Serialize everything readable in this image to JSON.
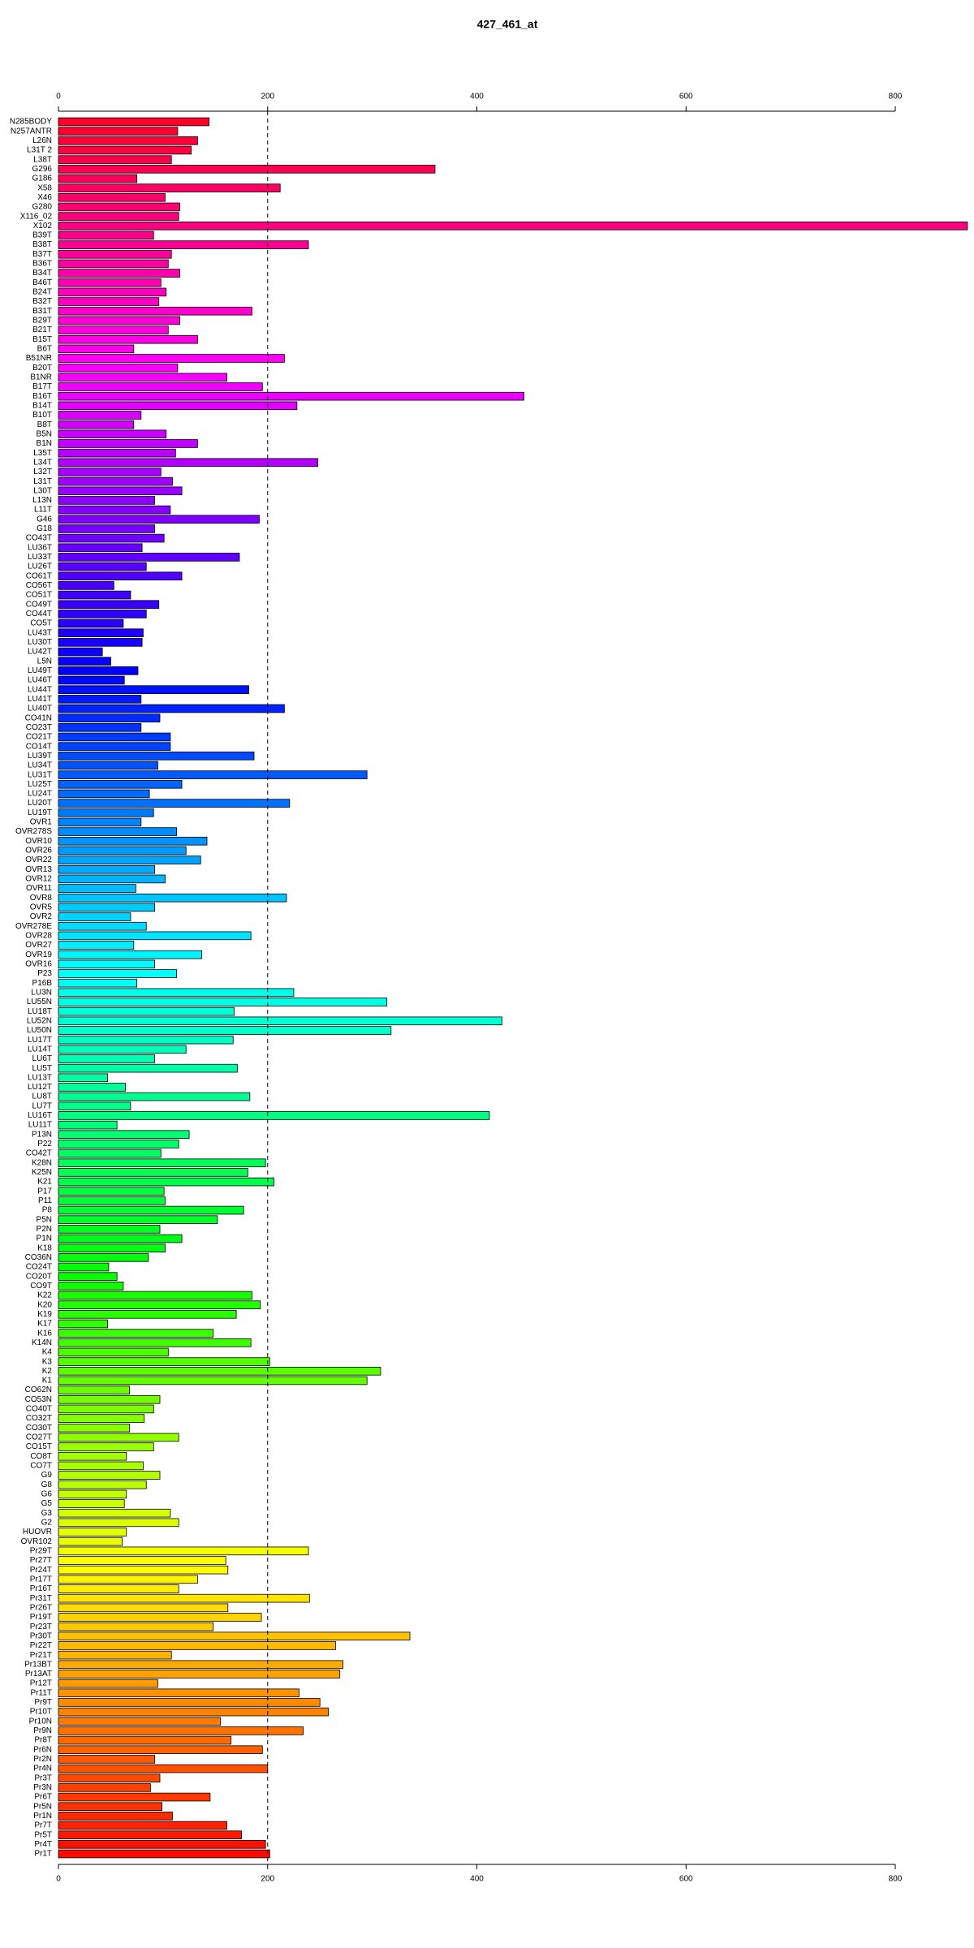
{
  "chart_data": {
    "type": "barh",
    "title": "427_461_at",
    "categories": [
      "N285BODY",
      "N257ANTR",
      "L26N",
      "L31T 2",
      "L38T",
      "G296",
      "G186",
      "X58",
      "X46",
      "G280",
      "X116_02",
      "X102",
      "B39T",
      "B38T",
      "B37T",
      "B36T",
      "B34T",
      "B46T",
      "B24T",
      "B32T",
      "B31T",
      "B29T",
      "B21T",
      "B15T",
      "B6T",
      "B51NR",
      "B20T",
      "B1NR",
      "B17T",
      "B16T",
      "B14T",
      "B10T",
      "B8T",
      "B5N",
      "B1N",
      "L35T",
      "L34T",
      "L32T",
      "L31T",
      "L30T",
      "L13N",
      "L11T",
      "G46",
      "G18",
      "CO43T",
      "LU36T",
      "LU33T",
      "LU26T",
      "CO61T",
      "CO56T",
      "CO51T",
      "CO49T",
      "CO44T",
      "CO5T",
      "LU43T",
      "LU30T",
      "LU42T",
      "L5N",
      "LU49T",
      "LU46T",
      "LU44T",
      "LU41T",
      "LU40T",
      "CO41N",
      "CO23T",
      "CO21T",
      "CO14T",
      "LU39T",
      "LU34T",
      "LU31T",
      "LU25T",
      "LU24T",
      "LU20T",
      "LU19T",
      "OVR1",
      "OVR278S",
      "OVR10",
      "OVR26",
      "OVR22",
      "OVR13",
      "OVR12",
      "OVR11",
      "OVR8",
      "OVR5",
      "OVR2",
      "OVR278E",
      "OVR28",
      "OVR27",
      "OVR19",
      "OVR16",
      "P23",
      "P16B",
      "LU3N",
      "LU55N",
      "LU18T",
      "LU52N",
      "LU50N",
      "LU17T",
      "LU14T",
      "LU6T",
      "LU5T",
      "LU13T",
      "LU12T",
      "LU8T",
      "LU7T",
      "LU16T",
      "LU11T",
      "P13N",
      "P22",
      "CO42T",
      "K28N",
      "K25N",
      "K21",
      "P17",
      "P11",
      "P8",
      "P5N",
      "P2N",
      "P1N",
      "K18",
      "CO36N",
      "CO24T",
      "CO20T",
      "CO9T",
      "K22",
      "K20",
      "K19",
      "K17",
      "K16",
      "K14N",
      "K4",
      "K3",
      "K2",
      "K1",
      "CO62N",
      "CO53N",
      "CO40T",
      "CO32T",
      "CO30T",
      "CO27T",
      "CO15T",
      "CO8T",
      "CO7T",
      "G9",
      "G8",
      "G6",
      "G5",
      "G3",
      "G2",
      "HUOVR",
      "OVR102",
      "Pr29T",
      "Pr27T",
      "Pr24T",
      "Pr17T",
      "Pr16T",
      "Pr31T",
      "Pr26T",
      "Pr19T",
      "Pr23T",
      "Pr30T",
      "Pr22T",
      "Pr21T",
      "Pr13BT",
      "Pr13AT",
      "Pr12T",
      "Pr11T",
      "Pr9T",
      "Pr10T",
      "Pr10N",
      "Pr9N",
      "Pr8T",
      "Pr6N",
      "Pr2N",
      "Pr4N",
      "Pr3T",
      "Pr3N",
      "Pr6T",
      "Pr5N",
      "Pr1N",
      "Pr7T",
      "Pr5T",
      "Pr4T",
      "Pr1T"
    ],
    "values": [
      144,
      114,
      133,
      127,
      108,
      360,
      75,
      212,
      102,
      116,
      115,
      869,
      91,
      239,
      108,
      105,
      116,
      98,
      103,
      96,
      185,
      116,
      105,
      133,
      72,
      216,
      114,
      161,
      195,
      445,
      228,
      79,
      72,
      103,
      133,
      112,
      248,
      98,
      109,
      118,
      92,
      107,
      192,
      92,
      101,
      80,
      173,
      84,
      118,
      53,
      69,
      96,
      84,
      62,
      81,
      80,
      42,
      50,
      76,
      63,
      182,
      79,
      216,
      97,
      79,
      107,
      107,
      187,
      95,
      295,
      118,
      87,
      221,
      91,
      79,
      113,
      142,
      122,
      136,
      92,
      102,
      74,
      218,
      92,
      69,
      84,
      184,
      72,
      137,
      92,
      113,
      75,
      225,
      314,
      168,
      424,
      318,
      167,
      122,
      92,
      171,
      47,
      64,
      183,
      69,
      412,
      56,
      125,
      115,
      98,
      198,
      181,
      206,
      101,
      102,
      177,
      152,
      97,
      118,
      102,
      86,
      48,
      56,
      62,
      185,
      193,
      170,
      47,
      148,
      184,
      105,
      202,
      308,
      295,
      68,
      97,
      91,
      82,
      68,
      115,
      91,
      65,
      81,
      97,
      84,
      65,
      63,
      107,
      115,
      65,
      61,
      239,
      160,
      162,
      133,
      115,
      240,
      162,
      194,
      148,
      336,
      265,
      108,
      272,
      269,
      95,
      230,
      250,
      258,
      155,
      234,
      165,
      195,
      92,
      200,
      97,
      88,
      145,
      99,
      109,
      161,
      175,
      198,
      202
    ],
    "colormap": {
      "hue_start": 350,
      "hue_end": 2
    },
    "xlim": [
      0,
      800
    ],
    "xticks": [
      0,
      200,
      400,
      600,
      800
    ],
    "reference_line": 200
  }
}
